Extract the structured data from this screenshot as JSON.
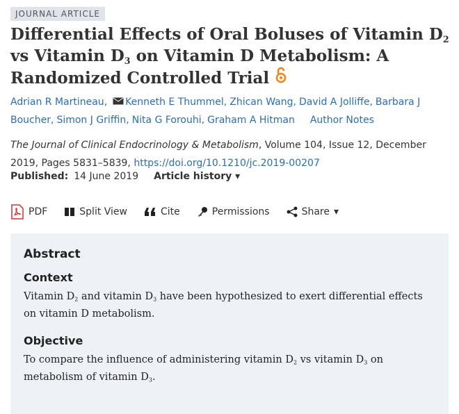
{
  "badge": "JOURNAL ARTICLE",
  "title": [
    "Differential Effects of Oral Boluses of Vitamin D",
    "2",
    " vs Vitamin D",
    "3",
    " on Vitamin D Metabolism: A Randomized Controlled Trial"
  ],
  "authors": [
    "Adrian R Martineau",
    "Kenneth E Thummel",
    "Zhican Wang",
    "David A Jolliffe",
    "Barbara J Boucher",
    "Simon J Griffin",
    "Nita G Forouhi",
    "Graham A Hitman"
  ],
  "author_notes": "Author Notes",
  "citation": {
    "journal": "The Journal of Clinical Endocrinology & Metabolism",
    "details": ", Volume 104, Issue 12, December 2019, Pages 5831–5839, ",
    "doi": "https://doi.org/10.1210/jc.2019-00207"
  },
  "published": {
    "label": "Published:",
    "date": "14 June 2019",
    "history": "Article history"
  },
  "toolbar": [
    "PDF",
    "Split View",
    "Cite",
    "Permissions",
    "Share"
  ],
  "abstract": {
    "heading": "Abstract",
    "sections": [
      {
        "heading": "Context",
        "text": [
          "Vitamin D",
          "2",
          " and vitamin D",
          "3",
          " have been hypothesized to exert differential effects on vitamin D metabolism."
        ]
      },
      {
        "heading": "Objective",
        "text": [
          "To compare the influence of administering vitamin D",
          "2",
          " vs vitamin D",
          "3",
          " on metabolism of vitamin D",
          "3",
          "."
        ]
      }
    ]
  }
}
